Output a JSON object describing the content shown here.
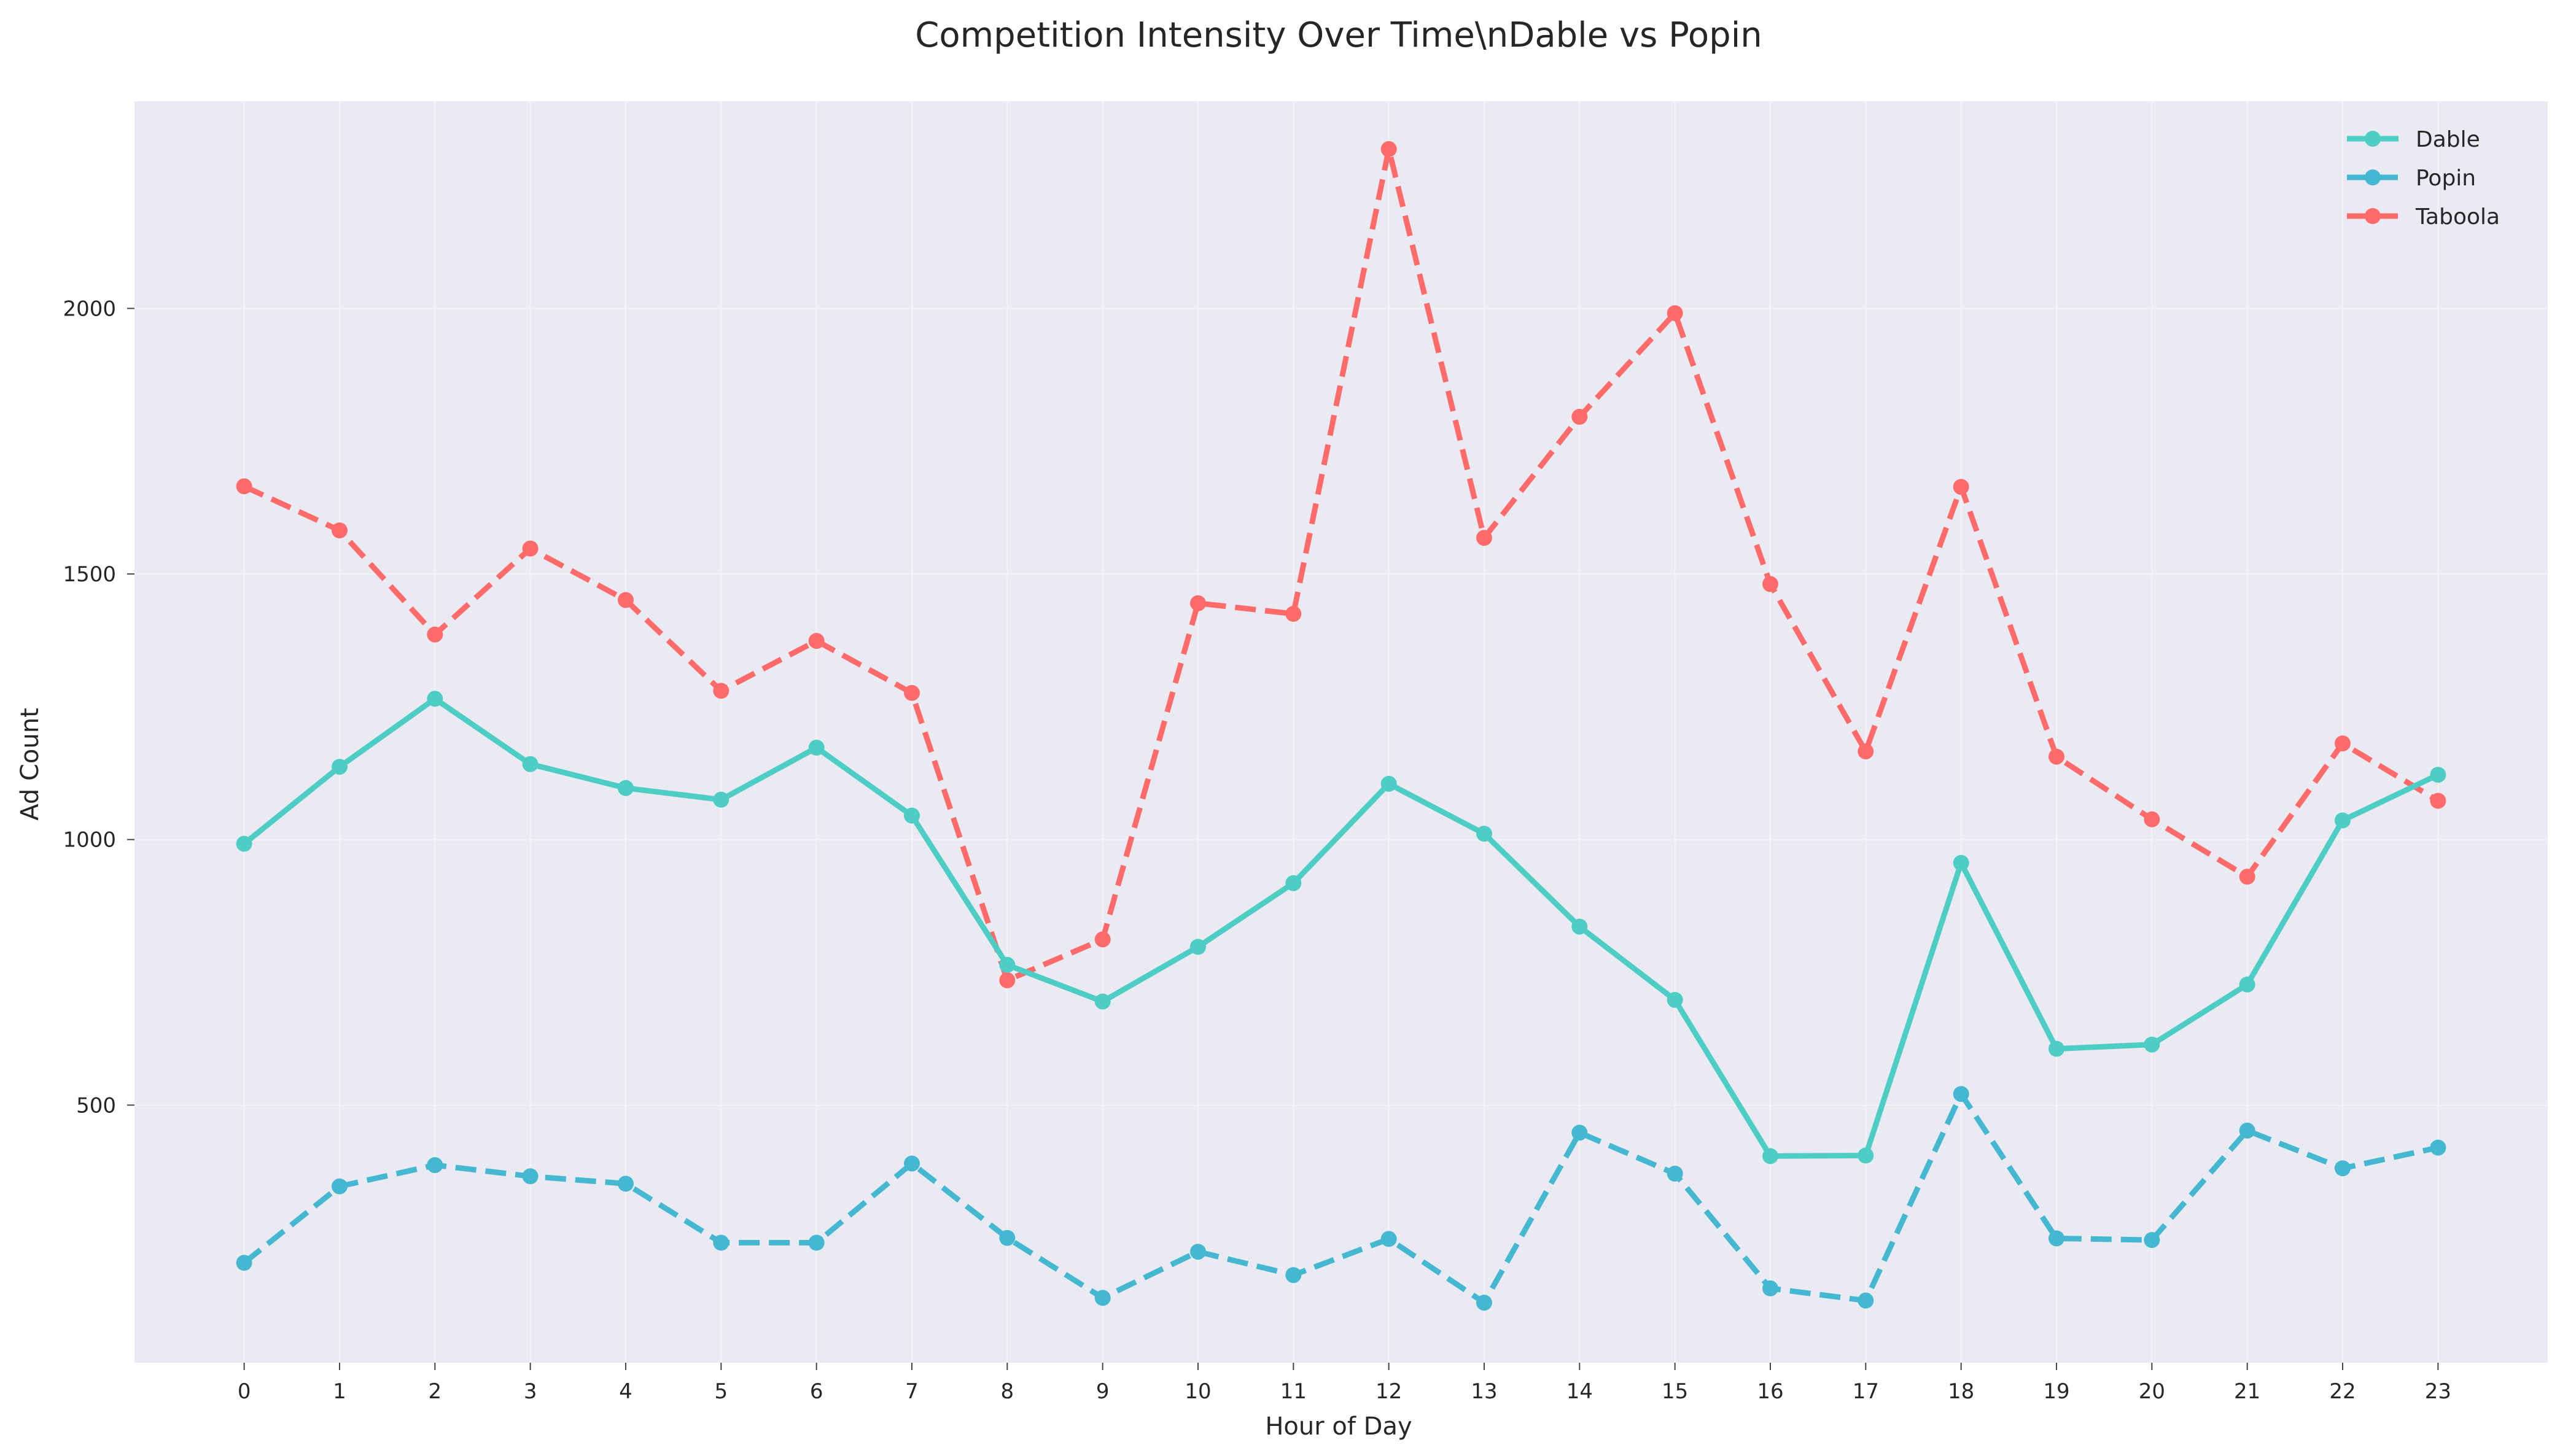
{
  "chart_data": {
    "type": "line",
    "title": "Competition Intensity Over Time\\nDable vs Popin",
    "xlabel": "Hour of Day",
    "ylabel": "Ad Count",
    "x": [
      0,
      1,
      2,
      3,
      4,
      5,
      6,
      7,
      8,
      9,
      10,
      11,
      12,
      13,
      14,
      15,
      16,
      17,
      18,
      19,
      20,
      21,
      22,
      23
    ],
    "x_ticks": [
      "0",
      "1",
      "2",
      "3",
      "4",
      "5",
      "6",
      "7",
      "8",
      "9",
      "10",
      "11",
      "12",
      "13",
      "14",
      "15",
      "16",
      "17",
      "18",
      "19",
      "20",
      "21",
      "22",
      "23"
    ],
    "y_ticks": [
      500,
      1000,
      1500,
      2000
    ],
    "y_tick_labels": [
      "500",
      "1000",
      "1500",
      "2000"
    ],
    "xlim": [
      -1.15,
      24.15
    ],
    "ylim": [
      15,
      2390
    ],
    "grid": true,
    "legend_position": "top-right",
    "background_color": "#EAEAF2",
    "series": [
      {
        "name": "Dable",
        "color": "#4ECDC4",
        "line_style": "solid",
        "values": [
          992,
          1137,
          1265,
          1142,
          1097,
          1075,
          1173,
          1045,
          764,
          695,
          798,
          918,
          1105,
          1011,
          836,
          698,
          404,
          405,
          956,
          606,
          614,
          727,
          1036,
          1122
        ]
      },
      {
        "name": "Popin",
        "color": "#45B7D1",
        "line_style": "dashed",
        "values": [
          203,
          347,
          387,
          366,
          352,
          241,
          241,
          390,
          250,
          137,
          224,
          180,
          248,
          128,
          448,
          371,
          155,
          132,
          521,
          249,
          246,
          452,
          381,
          420
        ]
      },
      {
        "name": "Taboola",
        "color": "#FF6B6B",
        "line_style": "dashed",
        "values": [
          1665,
          1582,
          1386,
          1548,
          1451,
          1280,
          1374,
          1276,
          735,
          812,
          1445,
          1425,
          2300,
          1568,
          1796,
          1991,
          1481,
          1166,
          1664,
          1156,
          1038,
          930,
          1181,
          1073
        ]
      }
    ]
  }
}
